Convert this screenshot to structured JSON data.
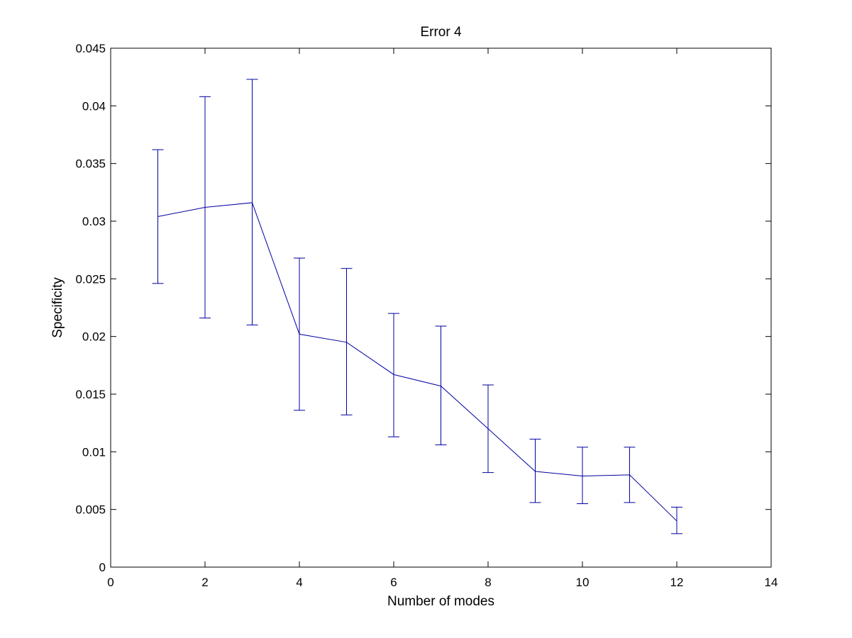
{
  "chart_data": {
    "type": "line",
    "title": "Error 4",
    "xlabel": "Number of modes",
    "ylabel": "Specificity",
    "xlim": [
      0,
      14
    ],
    "ylim": [
      0,
      0.045
    ],
    "xticks": [
      0,
      2,
      4,
      6,
      8,
      10,
      12,
      14
    ],
    "xtick_labels": [
      "0",
      "2",
      "4",
      "6",
      "8",
      "10",
      "12",
      "14"
    ],
    "yticks": [
      0,
      0.005,
      0.01,
      0.015,
      0.02,
      0.025,
      0.03,
      0.035,
      0.04,
      0.045
    ],
    "ytick_labels": [
      "0",
      "0.005",
      "0.01",
      "0.015",
      "0.02",
      "0.025",
      "0.03",
      "0.035",
      "0.04",
      "0.045"
    ],
    "grid": false,
    "series": [
      {
        "x": [
          1,
          2,
          3,
          4,
          5,
          6,
          7,
          8,
          9,
          10,
          11,
          12
        ],
        "y": [
          0.0304,
          0.0312,
          0.0316,
          0.0202,
          0.0195,
          0.0167,
          0.0157,
          0.012,
          0.0083,
          0.0079,
          0.008,
          0.004
        ],
        "lower": [
          0.0246,
          0.0216,
          0.021,
          0.0136,
          0.0132,
          0.0113,
          0.0106,
          0.0082,
          0.0056,
          0.0055,
          0.0056,
          0.0029
        ],
        "upper": [
          0.0362,
          0.0408,
          0.0423,
          0.0268,
          0.0259,
          0.022,
          0.0209,
          0.0158,
          0.0111,
          0.0104,
          0.0104,
          0.0052
        ],
        "color": "#0000a0"
      }
    ]
  }
}
